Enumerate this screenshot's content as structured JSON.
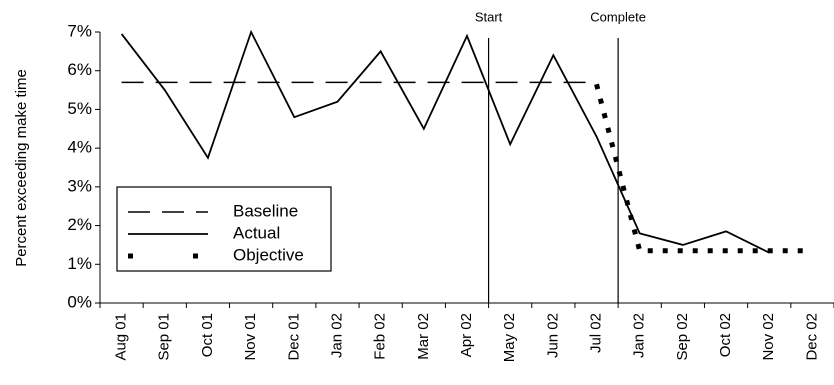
{
  "chart_data": {
    "type": "line",
    "y_label": "Percent exceeding make time",
    "categories": [
      "Aug 01",
      "Sep 01",
      "Oct 01",
      "Nov 01",
      "Dec 01",
      "Jan 02",
      "Feb 02",
      "Mar 02",
      "Apr 02",
      "May 02",
      "Jun 02",
      "Jul 02",
      "Jan 02",
      "Sep 02",
      "Oct 02",
      "Nov 02",
      "Dec 02"
    ],
    "series": [
      {
        "name": "Baseline",
        "color": "#000000",
        "style": "dashed",
        "values": [
          5.7,
          5.7,
          5.7,
          5.7,
          5.7,
          5.7,
          5.7,
          5.7,
          5.7,
          5.7,
          5.7,
          5.7,
          null,
          null,
          null,
          null,
          null
        ]
      },
      {
        "name": "Actual",
        "color": "#000000",
        "style": "solid",
        "values": [
          6.95,
          5.5,
          3.75,
          7.0,
          4.8,
          5.2,
          6.5,
          4.5,
          6.9,
          4.1,
          6.4,
          4.3,
          1.8,
          1.5,
          1.85,
          1.3,
          null
        ]
      },
      {
        "name": "Objective",
        "color": "#000000",
        "style": "dotted",
        "values": [
          null,
          null,
          null,
          null,
          null,
          null,
          null,
          null,
          null,
          null,
          null,
          5.65,
          1.35,
          1.35,
          1.35,
          1.35,
          1.35
        ]
      }
    ],
    "ylim": [
      0,
      7
    ],
    "yticks": [
      {
        "value": 0,
        "label": "0%"
      },
      {
        "value": 1,
        "label": "1%"
      },
      {
        "value": 2,
        "label": "2%"
      },
      {
        "value": 3,
        "label": "3%"
      },
      {
        "value": 4,
        "label": "4%"
      },
      {
        "value": 5,
        "label": "5%"
      },
      {
        "value": 6,
        "label": "6%"
      },
      {
        "value": 7,
        "label": "7%"
      }
    ],
    "annotations": [
      {
        "text": "Start",
        "after_index": 8
      },
      {
        "text": "Complete",
        "after_index": 11
      }
    ],
    "legend": "lower left"
  }
}
